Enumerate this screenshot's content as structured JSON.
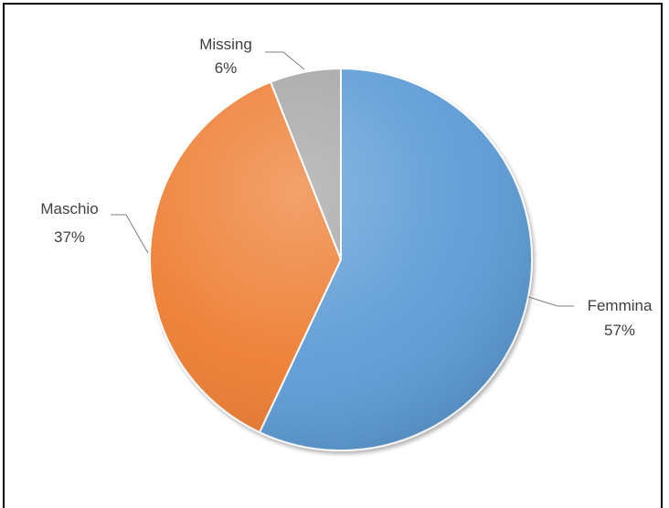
{
  "chart_data": {
    "type": "pie",
    "title": "",
    "slices": [
      {
        "label": "Femmina",
        "value": 57,
        "value_label": "57%",
        "color": "#5b9bd5"
      },
      {
        "label": "Maschio",
        "value": 37,
        "value_label": "37%",
        "color": "#ed7d31"
      },
      {
        "label": "Missing",
        "value": 6,
        "value_label": "6%",
        "color": "#a5a5a5"
      }
    ],
    "start_angle": "12 o'clock, clockwise",
    "style": "3D bevel",
    "legend": "none (leader-line labels)"
  }
}
